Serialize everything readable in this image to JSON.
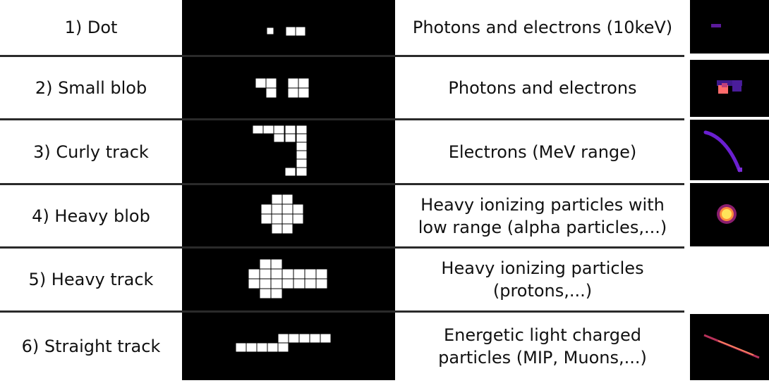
{
  "rows": [
    {
      "label": "1) Dot",
      "desc": [
        "Photons and electrons (10keV)"
      ],
      "thumb": "purple-dot"
    },
    {
      "label": "2) Small blob",
      "desc": [
        "Photons and electrons"
      ],
      "thumb": "small-blob"
    },
    {
      "label": "3) Curly track",
      "desc": [
        "Electrons (MeV range)"
      ],
      "thumb": "curly-track"
    },
    {
      "label": "4) Heavy blob",
      "desc": [
        "Heavy ionizing particles with",
        "low range (alpha particles,...)"
      ],
      "thumb": "heavy-blob"
    },
    {
      "label": "5) Heavy track",
      "desc": [
        "Heavy ionizing particles",
        "(protons,...)"
      ],
      "thumb": null
    },
    {
      "label": "6) Straight track",
      "desc": [
        "Energetic light charged",
        "particles (MIP, Muons,...)"
      ],
      "thumb": "straight-track"
    }
  ],
  "colors": {
    "pixel": "#ffffff",
    "background": "#000000",
    "track_purple": "#6a1fd0",
    "track_orange": "#ff7a3c",
    "blob_yellow": "#ffe45a"
  }
}
